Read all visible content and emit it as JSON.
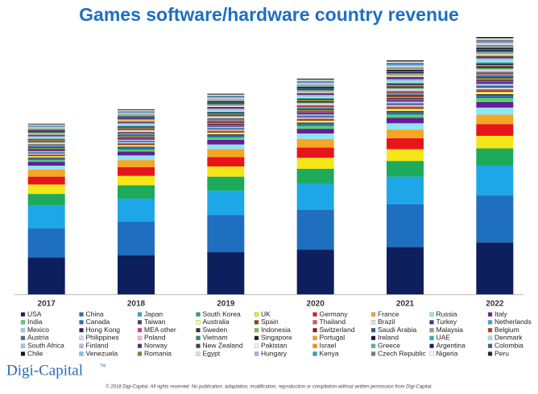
{
  "chart_data": {
    "type": "stacked_bar",
    "title": "Games software/hardware country revenue",
    "categories": [
      "2017",
      "2018",
      "2019",
      "2020",
      "2021",
      "2022"
    ],
    "series": [
      {
        "name": "USA",
        "color": "#0d1f5c",
        "values": [
          47,
          50,
          54,
          57,
          60,
          66
        ]
      },
      {
        "name": "China",
        "color": "#1f6fc0",
        "values": [
          37,
          43,
          47,
          51,
          55,
          60
        ]
      },
      {
        "name": "Japan",
        "color": "#1ea7e8",
        "values": [
          29,
          29,
          31,
          33,
          35,
          38
        ]
      },
      {
        "name": "South Korea",
        "color": "#1daa5a",
        "values": [
          15,
          17,
          18,
          19,
          20,
          22
        ]
      },
      {
        "name": "UK",
        "color": "#f5e61a",
        "values": [
          12,
          12,
          13,
          14,
          15,
          16
        ]
      },
      {
        "name": "Germany",
        "color": "#e8141c",
        "values": [
          10,
          11,
          12,
          13,
          14,
          15
        ]
      },
      {
        "name": "France",
        "color": "#f5a623",
        "values": [
          9,
          9,
          10,
          11,
          11,
          12
        ]
      },
      {
        "name": "Russia",
        "color": "#8fe6f0",
        "values": [
          5,
          6,
          6,
          7,
          8,
          9
        ]
      },
      {
        "name": "Italy",
        "color": "#6a1b9a",
        "values": [
          5,
          5,
          6,
          6,
          7,
          7
        ]
      },
      {
        "name": "India",
        "color": "#4cd964",
        "values": [
          2,
          2.5,
          3,
          3.5,
          4,
          5
        ]
      },
      {
        "name": "Canada",
        "color": "#2a6cb5",
        "values": [
          2,
          2.2,
          2.4,
          2.6,
          2.8,
          3
        ]
      },
      {
        "name": "Taiwan",
        "color": "#4a4a4a",
        "values": [
          1.5,
          1.7,
          1.8,
          2,
          2.2,
          2.4
        ]
      },
      {
        "name": "Australia",
        "color": "#ffff66",
        "values": [
          1.5,
          1.7,
          1.8,
          2,
          2.2,
          2.4
        ]
      },
      {
        "name": "Spain",
        "color": "#8b4513",
        "values": [
          1.5,
          1.6,
          1.7,
          1.8,
          2,
          2.2
        ]
      },
      {
        "name": "Thailand",
        "color": "#d9534f",
        "values": [
          1,
          1.1,
          1.2,
          1.3,
          1.5,
          1.7
        ]
      },
      {
        "name": "Brazil",
        "color": "#e0e0e0",
        "values": [
          1,
          1.1,
          1.2,
          1.3,
          1.5,
          1.7
        ]
      },
      {
        "name": "Turkey",
        "color": "#2d3e8c",
        "values": [
          1,
          1.1,
          1.2,
          1.3,
          1.5,
          1.7
        ]
      },
      {
        "name": "Netherlands",
        "color": "#3fa9d4",
        "values": [
          1,
          1.1,
          1.2,
          1.3,
          1.5,
          1.7
        ]
      },
      {
        "name": "Mexico",
        "color": "#a8c8e8",
        "values": [
          1,
          1.1,
          1.2,
          1.3,
          1.5,
          1.7
        ]
      },
      {
        "name": "Hong Kong",
        "color": "#3a1a6e",
        "values": [
          1,
          1.1,
          1.2,
          1.3,
          1.5,
          1.7
        ]
      },
      {
        "name": "MEA other",
        "color": "#d633b5",
        "values": [
          1,
          1.1,
          1.2,
          1.3,
          1.5,
          1.7
        ]
      },
      {
        "name": "Sweden",
        "color": "#333333",
        "values": [
          1,
          1.1,
          1.2,
          1.3,
          1.5,
          1.7
        ]
      },
      {
        "name": "Indonesia",
        "color": "#7ac143",
        "values": [
          1,
          1.1,
          1.2,
          1.3,
          1.5,
          1.7
        ]
      },
      {
        "name": "Switzerland",
        "color": "#a01010",
        "values": [
          1,
          1.1,
          1.2,
          1.3,
          1.5,
          1.7
        ]
      },
      {
        "name": "Saudi Arabia",
        "color": "#1a5ea8",
        "values": [
          1,
          1.1,
          1.2,
          1.3,
          1.5,
          1.7
        ]
      },
      {
        "name": "Malaysia",
        "color": "#999999",
        "values": [
          1,
          1.1,
          1.2,
          1.3,
          1.5,
          1.7
        ]
      },
      {
        "name": "Belgium",
        "color": "#c0392b",
        "values": [
          1,
          1.1,
          1.2,
          1.3,
          1.5,
          1.7
        ]
      },
      {
        "name": "Austria",
        "color": "#556b7d",
        "values": [
          1,
          1.1,
          1.2,
          1.3,
          1.5,
          1.7
        ]
      },
      {
        "name": "Philippines",
        "color": "#d8d8f0",
        "values": [
          1,
          1.1,
          1.2,
          1.3,
          1.5,
          1.7
        ]
      },
      {
        "name": "Poland",
        "color": "#f7b7c7",
        "values": [
          1,
          1.1,
          1.2,
          1.3,
          1.5,
          1.7
        ]
      },
      {
        "name": "Vietnam",
        "color": "#2e8b57",
        "values": [
          1,
          1.1,
          1.2,
          1.3,
          1.5,
          1.7
        ]
      },
      {
        "name": "Singapore",
        "color": "#202020",
        "values": [
          1,
          1.1,
          1.2,
          1.3,
          1.5,
          1.7
        ]
      },
      {
        "name": "Portugal",
        "color": "#f0a020",
        "values": [
          1,
          1.1,
          1.2,
          1.3,
          1.5,
          1.7
        ]
      },
      {
        "name": "Ireland",
        "color": "#101040",
        "values": [
          1,
          1.1,
          1.2,
          1.3,
          1.5,
          1.7
        ]
      },
      {
        "name": "UAE",
        "color": "#20b2aa",
        "values": [
          1,
          1.1,
          1.2,
          1.3,
          1.5,
          1.7
        ]
      },
      {
        "name": "Denmark",
        "color": "#a8e6e0",
        "values": [
          1,
          1.1,
          1.2,
          1.3,
          1.5,
          1.7
        ]
      },
      {
        "name": "South Africa",
        "color": "#a0c4e8",
        "values": [
          1,
          1.1,
          1.2,
          1.3,
          1.5,
          1.7
        ]
      },
      {
        "name": "Finland",
        "color": "#aab8d8",
        "values": [
          1,
          1.1,
          1.2,
          1.3,
          1.5,
          1.7
        ]
      },
      {
        "name": "Norway",
        "color": "#5a2d82",
        "values": [
          1,
          1.1,
          1.2,
          1.3,
          1.5,
          1.7
        ]
      },
      {
        "name": "New Zealand",
        "color": "#444444",
        "values": [
          1,
          1.1,
          1.2,
          1.3,
          1.5,
          1.7
        ]
      },
      {
        "name": "Pakistan",
        "color": "#f0f0f0",
        "values": [
          1,
          1.1,
          1.2,
          1.3,
          1.5,
          1.7
        ]
      },
      {
        "name": "Israel",
        "color": "#ff8c00",
        "values": [
          1,
          1.1,
          1.2,
          1.3,
          1.5,
          1.7
        ]
      },
      {
        "name": "Greece",
        "color": "#5ab0a0",
        "values": [
          1,
          1.1,
          1.2,
          1.3,
          1.5,
          1.7
        ]
      },
      {
        "name": "Argentina",
        "color": "#1a1a5a",
        "values": [
          1,
          1.1,
          1.2,
          1.3,
          1.5,
          1.7
        ]
      },
      {
        "name": "Colombia",
        "color": "#406080",
        "values": [
          1,
          1.1,
          1.2,
          1.3,
          1.5,
          1.7
        ]
      },
      {
        "name": "Chile",
        "color": "#111111",
        "values": [
          1,
          1.1,
          1.2,
          1.3,
          1.5,
          1.7
        ]
      },
      {
        "name": "Venezuela",
        "color": "#88c0e0",
        "values": [
          1,
          1.1,
          1.2,
          1.3,
          1.5,
          1.7
        ]
      },
      {
        "name": "Romania",
        "color": "#8b7d3a",
        "values": [
          1,
          1.1,
          1.2,
          1.3,
          1.5,
          1.7
        ]
      },
      {
        "name": "Egypt",
        "color": "#dddddd",
        "values": [
          1,
          1.1,
          1.2,
          1.3,
          1.5,
          1.7
        ]
      },
      {
        "name": "Hungary",
        "color": "#c6a0e0",
        "values": [
          1,
          1.1,
          1.2,
          1.3,
          1.5,
          1.7
        ]
      },
      {
        "name": "Kenya",
        "color": "#3399cc",
        "values": [
          1,
          1.1,
          1.2,
          1.3,
          1.5,
          1.7
        ]
      },
      {
        "name": "Czech Republic",
        "color": "#7a7a7a",
        "values": [
          1,
          1.1,
          1.2,
          1.3,
          1.5,
          1.7
        ]
      },
      {
        "name": "Nigeria",
        "color": "#f8f8f8",
        "values": [
          1,
          1.1,
          1.2,
          1.3,
          1.5,
          1.7
        ]
      },
      {
        "name": "Peru",
        "color": "#222222",
        "values": [
          1,
          1.1,
          1.2,
          1.3,
          1.5,
          1.7
        ]
      }
    ],
    "brand": "Digi-Capital",
    "brand_mark": "TM",
    "footer": "© 2018 Digi-Capital. All rights reserved. No publication, adaptation, modification, reproduction or compilation without written permission from Digi-Capital."
  }
}
